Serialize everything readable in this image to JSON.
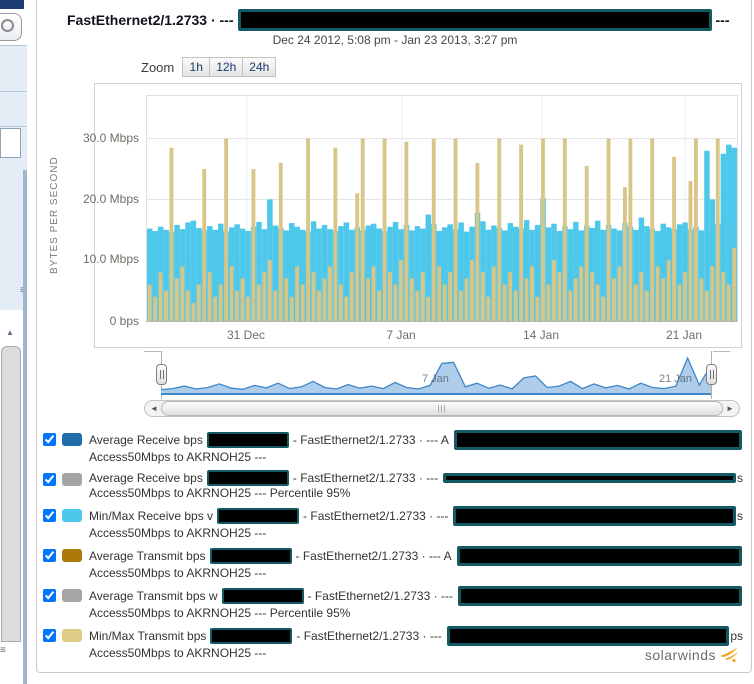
{
  "header": {
    "title": "FastEthernet2/1.2733 · ---",
    "title_suffix": "---",
    "date_range": "Dec 24 2012, 5:08 pm - Jan 23 2013, 3:27 pm"
  },
  "zoom": {
    "label": "Zoom",
    "buttons": [
      "1h",
      "12h",
      "24h"
    ]
  },
  "chart_data": {
    "type": "bar",
    "title": "",
    "ylabel": "BYTES PER SECOND",
    "y_ticks": [
      "30.0 Mbps",
      "20.0 Mbps",
      "10.0 Mbps",
      "0 bps"
    ],
    "y_tick_values": [
      30,
      20,
      10,
      0
    ],
    "x_ticks": [
      "31 Dec",
      "7 Jan",
      "14 Jan",
      "21 Jan"
    ],
    "ylim": [
      0,
      37
    ],
    "unit": "Mbps",
    "grid": true,
    "series": [
      {
        "name": "Min/Max Receive bps",
        "color": "#4dc7ea",
        "values": [
          15.2,
          14.8,
          15.5,
          15.0,
          14.6,
          15.8,
          15.1,
          16.2,
          16.5,
          15.3,
          14.9,
          15.6,
          15.0,
          16.0,
          14.7,
          15.4,
          15.9,
          15.2,
          14.8,
          15.5,
          16.3,
          15.1,
          20.0,
          15.7,
          15.3,
          14.9,
          16.1,
          15.5,
          15.0,
          14.7,
          16.4,
          15.2,
          15.8,
          15.1,
          14.8,
          15.6,
          16.2,
          15.0,
          15.4,
          14.9,
          15.7,
          16.0,
          15.2,
          14.8,
          15.5,
          16.3,
          15.1,
          15.8,
          14.9,
          15.6,
          15.2,
          17.5,
          16.0,
          14.8,
          15.4,
          15.9,
          15.1,
          16.2,
          14.7,
          15.5,
          17.8,
          16.4,
          15.0,
          15.7,
          15.3,
          14.9,
          16.1,
          15.5,
          15.2,
          16.6,
          15.0,
          15.8,
          20.2,
          15.4,
          16.0,
          14.8,
          15.6,
          15.1,
          16.3,
          14.9,
          15.7,
          15.3,
          16.5,
          15.0,
          15.8,
          15.2,
          14.9,
          16.1,
          15.5,
          15.0,
          17.0,
          15.6,
          15.2,
          14.8,
          16.0,
          15.4,
          15.1,
          15.9,
          16.2,
          15.0,
          15.5,
          14.9,
          28.0,
          20.0,
          16.0,
          27.5,
          29.0,
          28.5
        ]
      },
      {
        "name": "Min/Max Transmit bps",
        "color": "#d8c687",
        "values": [
          6,
          4,
          8,
          5,
          28.5,
          7,
          9,
          5,
          3,
          6,
          25,
          8,
          4,
          6,
          30,
          9,
          5,
          7,
          4,
          25,
          6,
          8,
          10,
          5,
          26,
          7,
          4,
          9,
          6,
          30,
          8,
          5,
          7,
          9,
          28.5,
          6,
          4,
          8,
          21,
          30,
          7,
          9,
          5,
          30,
          8,
          6,
          10,
          29.5,
          7,
          5,
          8,
          4,
          30,
          9,
          6,
          8,
          30,
          5,
          7,
          10,
          26,
          8,
          4,
          9,
          30,
          6,
          8,
          5,
          29,
          7,
          9,
          4,
          30,
          6,
          10,
          8,
          30,
          5,
          7,
          9,
          25.5,
          8,
          6,
          4,
          30,
          7,
          9,
          22,
          30,
          6,
          8,
          5,
          30,
          9,
          7,
          10,
          27,
          6,
          8,
          23,
          30,
          7,
          5,
          9,
          30,
          8,
          6,
          12
        ]
      }
    ],
    "navigator": {
      "color": "#3f87c9",
      "fill": "#aecdea",
      "labels": [
        "7 Jan",
        "21 Jan"
      ],
      "values": [
        0.12,
        0.15,
        0.22,
        0.14,
        0.18,
        0.28,
        0.16,
        0.13,
        0.24,
        0.17,
        0.3,
        0.15,
        0.2,
        0.35,
        0.18,
        0.14,
        0.26,
        0.16,
        0.22,
        0.15,
        0.32,
        0.18,
        0.14,
        0.24,
        0.85,
        0.88,
        0.2,
        0.3,
        0.16,
        0.25,
        0.14,
        0.45,
        0.5,
        0.18,
        0.22,
        0.35,
        0.15,
        0.28,
        0.17,
        0.24,
        0.14,
        0.3,
        0.18,
        0.15,
        0.22,
        1.0,
        0.25,
        0.8
      ]
    }
  },
  "scrollbar": {
    "left_arrow": "◄",
    "right_arrow": "►",
    "grip": "|||"
  },
  "legend": {
    "rows": [
      {
        "color": "#1f6cab",
        "prefix": "Average Receive bps",
        "mid": "- FastEthernet2/1.2733 · --- A",
        "trail": "",
        "thin": false,
        "line2": "Access50Mbps to AKRNOH25 ---"
      },
      {
        "color": "#a5a5a5",
        "prefix": "Average Receive bps",
        "mid": "- FastEthernet2/1.2733 · ---",
        "trail": "s",
        "thin": true,
        "line2": "Access50Mbps to AKRNOH25 --- Percentile 95%"
      },
      {
        "color": "#4dc7ea",
        "prefix": "Min/Max Receive bps v",
        "mid": "- FastEthernet2/1.2733 · ---",
        "trail": "s",
        "thin": false,
        "line2": "Access50Mbps to AKRNOH25 ---"
      },
      {
        "color": "#ac7a08",
        "prefix": "Average Transmit bps",
        "mid": "- FastEthernet2/1.2733 · --- A",
        "trail": "",
        "thin": false,
        "line2": "Access50Mbps to AKRNOH25 ---"
      },
      {
        "color": "#a5a5a5",
        "prefix": "Average Transmit bps w",
        "mid": "- FastEthernet2/1.2733 · ---",
        "trail": "",
        "thin": false,
        "line2": "Access50Mbps to AKRNOH25 --- Percentile 95%"
      },
      {
        "color": "#decb86",
        "prefix": "Min/Max Transmit bps",
        "mid": "- FastEthernet2/1.2733 · ---",
        "trail": "ps",
        "thin": false,
        "line2": "Access50Mbps to AKRNOH25 ---"
      }
    ]
  },
  "footer": {
    "brand": "solarwinds"
  }
}
